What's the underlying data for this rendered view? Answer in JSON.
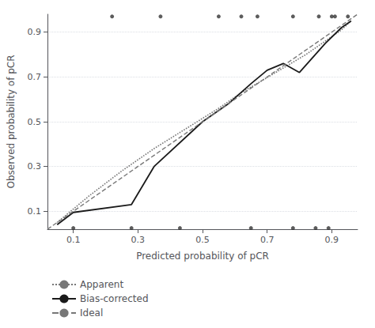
{
  "chart_data": {
    "type": "line",
    "xlabel": "Predicted probability of pCR",
    "ylabel": "Observed probability of pCR",
    "xlim": [
      0.02,
      0.98
    ],
    "ylim": [
      0.02,
      0.98
    ],
    "xticks": [
      0.1,
      0.3,
      0.5,
      0.7,
      0.9
    ],
    "yticks": [
      0.1,
      0.3,
      0.5,
      0.7,
      0.9
    ],
    "grid": true,
    "legend": "bottom",
    "series": [
      {
        "name": "Apparent",
        "type": "line",
        "line_style": "dotted",
        "color": "#777777",
        "x": [
          0.05,
          0.15,
          0.25,
          0.35,
          0.45,
          0.55,
          0.62,
          0.68,
          0.75,
          0.82,
          0.88,
          0.93,
          0.96
        ],
        "values": [
          0.05,
          0.17,
          0.28,
          0.38,
          0.47,
          0.56,
          0.63,
          0.68,
          0.74,
          0.8,
          0.86,
          0.91,
          0.95
        ]
      },
      {
        "name": "Bias-corrected",
        "type": "line",
        "line_style": "solid",
        "color": "#1a1a1a",
        "x": [
          0.05,
          0.1,
          0.28,
          0.35,
          0.5,
          0.58,
          0.65,
          0.7,
          0.75,
          0.8,
          0.88,
          0.93,
          0.96
        ],
        "values": [
          0.04,
          0.095,
          0.13,
          0.3,
          0.5,
          0.58,
          0.67,
          0.73,
          0.76,
          0.72,
          0.85,
          0.92,
          0.95
        ]
      },
      {
        "name": "Ideal",
        "type": "line",
        "line_style": "dashed",
        "color": "#777777",
        "x": [
          0.02,
          0.98
        ],
        "values": [
          0.02,
          0.98
        ]
      },
      {
        "type": "scatter",
        "marker": "dot",
        "color": "#333333",
        "x": [
          0.22,
          0.37,
          0.55,
          0.62,
          0.67,
          0.78,
          0.86,
          0.9,
          0.91,
          0.95
        ],
        "values": [
          0.97,
          0.97,
          0.97,
          0.97,
          0.97,
          0.97,
          0.97,
          0.97,
          0.97,
          0.97
        ]
      },
      {
        "type": "scatter",
        "marker": "dot",
        "color": "#333333",
        "x": [
          0.1,
          0.28,
          0.43,
          0.65,
          0.78,
          0.85,
          0.89
        ],
        "values": [
          0.025,
          0.025,
          0.025,
          0.025,
          0.025,
          0.025,
          0.025
        ]
      }
    ]
  }
}
